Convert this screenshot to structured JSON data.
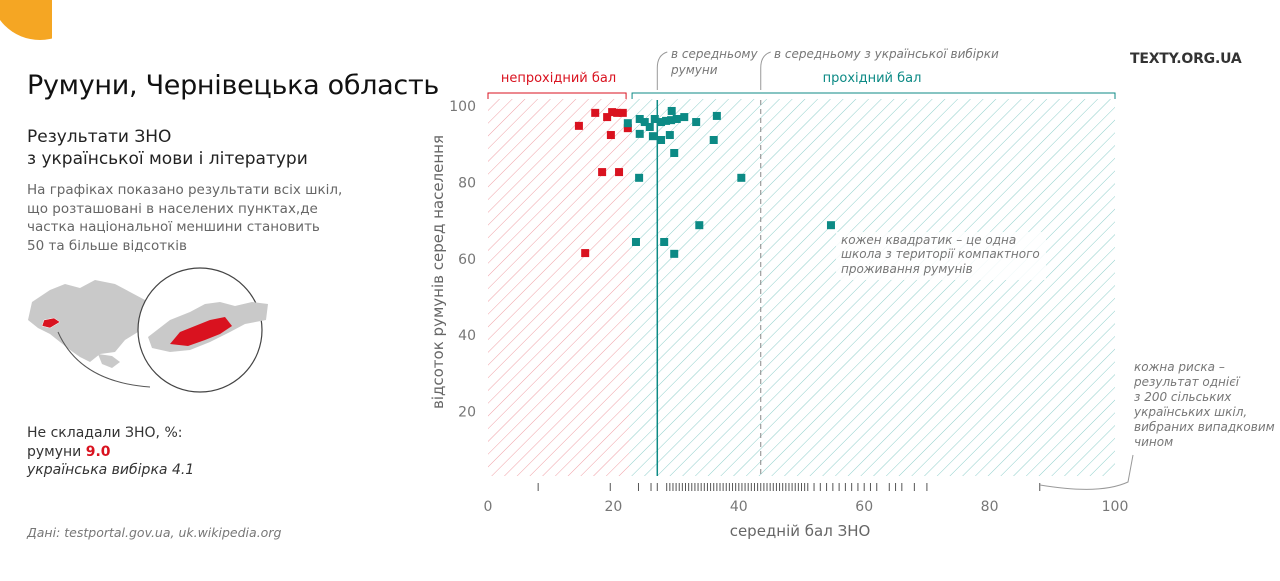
{
  "page": {
    "title": "Румуни, Чернівецька область",
    "subtitle_line1": "Результати ЗНО",
    "subtitle_line2": "з української мови і літератури",
    "description": [
      "На графіках показано результати всіх шкіл,",
      "що розташовані в населених пунктах,де",
      "частка національної меншини становить",
      "50 та більше відсотків"
    ],
    "stats": {
      "heading": "Не складали ЗНО, %:",
      "minority_label": "румуни",
      "minority_value": "9.0",
      "sample_label": "українська вибірка",
      "sample_value": "4.1"
    },
    "source": "Дані: testportal.gov.ua, uk.wikipedia.org",
    "brand": "TEXTY.ORG.UA"
  },
  "colors": {
    "fail": "#d9121f",
    "pass": "#0c8a85",
    "accent": "#f5a623"
  },
  "chart_data": {
    "type": "scatter",
    "xlabel": "середній бал ЗНО",
    "ylabel": "відсоток румунів серед населення",
    "xlim": [
      0,
      100
    ],
    "ylim": [
      0,
      100
    ],
    "xticks": [
      0,
      20,
      40,
      60,
      80,
      100
    ],
    "yticks": [
      20,
      40,
      60,
      80,
      100
    ],
    "threshold": 22.5,
    "minority_mean": 27.0,
    "ukrainian_sample_mean": 43.5,
    "bands": {
      "fail_label": "непрохідний бал",
      "pass_label": "прохідний бал"
    },
    "annotations": {
      "minority_mean": [
        "в середньому",
        "румуни"
      ],
      "sample_mean": "в середньому з української вибірки",
      "square_note": [
        "кожен квадратик – це одна",
        "школа з території компактного",
        "проживання румунів"
      ],
      "rug_note": [
        "кожна риска –",
        "результат однієї",
        "з 200 сільських",
        "українських шкіл,",
        "вибраних випадковим",
        "чином"
      ]
    },
    "series": [
      {
        "name": "fail",
        "points": [
          [
            14.5,
            94.8
          ],
          [
            17.1,
            98.2
          ],
          [
            19.0,
            97.1
          ],
          [
            19.8,
            98.4
          ],
          [
            20.6,
            98.2
          ],
          [
            21.5,
            98.2
          ],
          [
            19.6,
            92.4
          ],
          [
            22.3,
            94.2
          ],
          [
            18.2,
            82.7
          ],
          [
            20.9,
            82.7
          ],
          [
            15.5,
            61.5
          ]
        ]
      },
      {
        "name": "pass",
        "points": [
          [
            22.3,
            95.5
          ],
          [
            24.2,
            96.6
          ],
          [
            25.0,
            95.8
          ],
          [
            25.8,
            94.5
          ],
          [
            24.2,
            92.7
          ],
          [
            26.6,
            96.6
          ],
          [
            27.6,
            95.8
          ],
          [
            28.4,
            96.1
          ],
          [
            29.2,
            96.3
          ],
          [
            30.1,
            96.6
          ],
          [
            31.3,
            97.1
          ],
          [
            29.3,
            98.7
          ],
          [
            33.2,
            95.8
          ],
          [
            36.5,
            97.4
          ],
          [
            26.3,
            92.1
          ],
          [
            27.6,
            91.1
          ],
          [
            29.0,
            92.4
          ],
          [
            36.0,
            91.1
          ],
          [
            29.7,
            87.7
          ],
          [
            24.1,
            81.2
          ],
          [
            40.4,
            81.2
          ],
          [
            33.7,
            68.8
          ],
          [
            54.7,
            68.8
          ],
          [
            23.6,
            64.4
          ],
          [
            28.1,
            64.4
          ],
          [
            29.7,
            61.3
          ]
        ]
      }
    ],
    "rug": [
      8,
      19.5,
      24,
      26,
      27,
      28.5,
      29,
      29.5,
      30,
      30.5,
      31,
      31.5,
      32,
      32.5,
      33,
      33.5,
      34,
      34.5,
      35,
      35.5,
      36,
      36.5,
      37,
      37.5,
      38,
      38.5,
      39,
      39.5,
      40,
      40.5,
      41,
      41.5,
      42,
      42.5,
      43,
      43.5,
      44,
      44.5,
      45,
      45.5,
      46,
      46.5,
      47,
      47.5,
      48,
      48.5,
      49,
      49.5,
      50,
      50.5,
      51,
      52,
      53,
      54,
      55,
      56,
      57,
      58,
      59,
      60,
      61,
      62,
      64,
      65,
      66,
      68,
      70,
      88
    ]
  }
}
